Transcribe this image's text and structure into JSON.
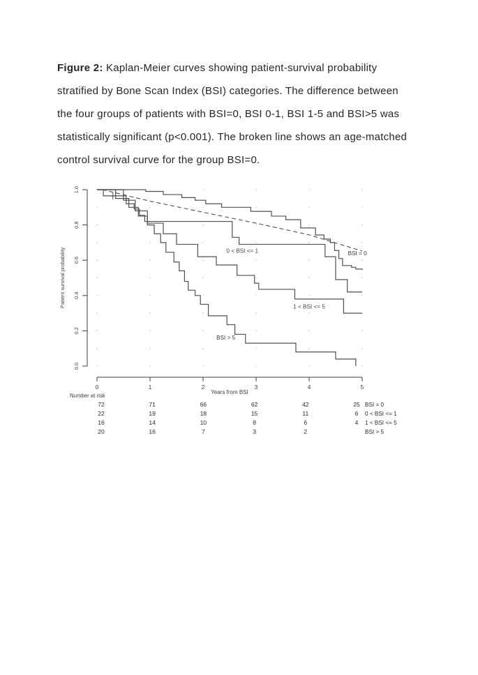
{
  "page": {
    "background": "#ffffff"
  },
  "caption": {
    "prefix": "Figure 2:",
    "line1_rest": " Kaplan-Meier curves showing patient-survival probability",
    "lines": [
      "stratified by Bone Scan Index (BSI) categories. The difference between",
      "the four groups of patients with BSI=0, BSI 0-1, BSI 1-5 and BSI>5 was",
      "statistically significant (p<0.001). The broken line shows an age-matched",
      "control survival curve for the group BSI=0."
    ]
  },
  "chart_data": {
    "type": "line",
    "subtype": "kaplan-meier-step",
    "title": "",
    "xlabel": "Years from BSI",
    "ylabel": "Patient survival probability",
    "xlim": [
      0,
      5
    ],
    "ylim": [
      0.0,
      1.0
    ],
    "x_ticks": [
      "0",
      "1",
      "2",
      "3",
      "4",
      "5"
    ],
    "y_ticks": [
      "0.0",
      "0.2",
      "0.4",
      "0.6",
      "0.8",
      "1.0"
    ],
    "grid": "dotted points at integer years and every 0.1 survival",
    "curve_color": "#4f4f4f",
    "text_color": "#3d3d3d",
    "grid_dot_color": "#a3a3a3",
    "censor_marks": [
      [
        0.3,
        0.965
      ]
    ],
    "series": [
      {
        "name": "BSI = 0",
        "line": "step",
        "label": "BSI = 0",
        "label_pos": [
          4.91,
          0.641
        ],
        "points": [
          [
            0,
            1.0
          ],
          [
            0.92,
            0.99
          ],
          [
            1.25,
            0.972
          ],
          [
            1.6,
            0.955
          ],
          [
            1.85,
            0.94
          ],
          [
            2.05,
            0.92
          ],
          [
            2.35,
            0.9
          ],
          [
            2.9,
            0.877
          ],
          [
            3.29,
            0.85
          ],
          [
            3.56,
            0.83
          ],
          [
            3.84,
            0.783
          ],
          [
            4.12,
            0.743
          ],
          [
            4.28,
            0.72
          ],
          [
            4.4,
            0.7
          ],
          [
            4.48,
            0.655
          ],
          [
            4.56,
            0.61
          ],
          [
            4.63,
            0.57
          ],
          [
            4.8,
            0.56
          ],
          [
            4.88,
            0.55
          ],
          [
            5.0,
            0.545
          ]
        ]
      },
      {
        "name": "0 < BSI <= 1",
        "line": "step",
        "label": "0 < BSI <= 1",
        "label_pos": [
          2.74,
          0.655
        ],
        "points": [
          [
            0,
            1.0
          ],
          [
            0.12,
            0.965
          ],
          [
            0.55,
            0.92
          ],
          [
            0.7,
            0.89
          ],
          [
            0.8,
            0.855
          ],
          [
            0.9,
            0.82
          ],
          [
            2.55,
            0.73
          ],
          [
            2.68,
            0.69
          ],
          [
            4.3,
            0.62
          ],
          [
            4.5,
            0.49
          ],
          [
            4.72,
            0.42
          ],
          [
            5.0,
            0.42
          ]
        ]
      },
      {
        "name": "1 < BSI <= 5",
        "line": "step",
        "label": "1 < BSI <= 5",
        "label_pos": [
          4.0,
          0.338
        ],
        "points": [
          [
            0,
            1.0
          ],
          [
            0.5,
            0.94
          ],
          [
            0.72,
            0.88
          ],
          [
            0.95,
            0.81
          ],
          [
            1.25,
            0.75
          ],
          [
            1.5,
            0.69
          ],
          [
            1.9,
            0.62
          ],
          [
            2.25,
            0.573
          ],
          [
            2.64,
            0.514
          ],
          [
            2.97,
            0.47
          ],
          [
            3.05,
            0.435
          ],
          [
            3.73,
            0.38
          ],
          [
            4.65,
            0.3
          ],
          [
            5.0,
            0.3
          ]
        ]
      },
      {
        "name": "BSI > 5",
        "line": "step",
        "label": "BSI > 5",
        "label_pos": [
          2.43,
          0.163
        ],
        "points": [
          [
            0,
            1.0
          ],
          [
            0.35,
            0.95
          ],
          [
            0.6,
            0.9
          ],
          [
            0.78,
            0.85
          ],
          [
            0.95,
            0.8
          ],
          [
            1.08,
            0.75
          ],
          [
            1.2,
            0.7
          ],
          [
            1.3,
            0.645
          ],
          [
            1.45,
            0.59
          ],
          [
            1.55,
            0.54
          ],
          [
            1.65,
            0.48
          ],
          [
            1.72,
            0.43
          ],
          [
            1.85,
            0.4
          ],
          [
            1.95,
            0.35
          ],
          [
            2.1,
            0.285
          ],
          [
            2.45,
            0.235
          ],
          [
            2.6,
            0.18
          ],
          [
            2.8,
            0.13
          ],
          [
            3.75,
            0.08
          ],
          [
            4.5,
            0.04
          ],
          [
            4.88,
            0.0
          ]
        ]
      },
      {
        "name": "Age-matched control (BSI = 0)",
        "line": "dashed",
        "label": "",
        "points": [
          [
            0.1,
            1.0
          ],
          [
            1,
            0.935
          ],
          [
            2,
            0.872
          ],
          [
            3,
            0.81
          ],
          [
            4,
            0.744
          ],
          [
            5,
            0.652
          ]
        ]
      }
    ]
  },
  "risk_table": {
    "header": "Number at risk",
    "time_points": [
      "0",
      "1",
      "2",
      "3",
      "4",
      "5"
    ],
    "rows": [
      {
        "label": "BSI = 0",
        "counts": [
          "72",
          "71",
          "66",
          "62",
          "42",
          "25"
        ]
      },
      {
        "label": "0 < BSI <= 1",
        "counts": [
          "22",
          "19",
          "18",
          "15",
          "11",
          "6"
        ]
      },
      {
        "label": "1 < BSI <= 5",
        "counts": [
          "16",
          "14",
          "10",
          "8",
          "6",
          "4"
        ]
      },
      {
        "label": "BSI > 5",
        "counts": [
          "20",
          "16",
          "7",
          "3",
          "2",
          ""
        ]
      }
    ]
  }
}
